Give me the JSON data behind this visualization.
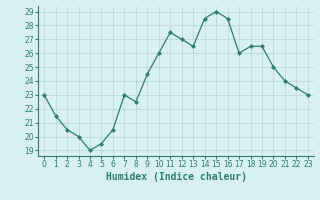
{
  "x": [
    0,
    1,
    2,
    3,
    4,
    5,
    6,
    7,
    8,
    9,
    10,
    11,
    12,
    13,
    14,
    15,
    16,
    17,
    18,
    19,
    20,
    21,
    22,
    23
  ],
  "y": [
    23.0,
    21.5,
    20.5,
    20.0,
    19.0,
    19.5,
    20.5,
    23.0,
    22.5,
    24.5,
    26.0,
    27.5,
    27.0,
    26.5,
    28.5,
    29.0,
    28.5,
    26.0,
    26.5,
    26.5,
    25.0,
    24.0,
    23.5,
    23.0
  ],
  "xlabel": "Humidex (Indice chaleur)",
  "xlim_min": -0.5,
  "xlim_max": 23.5,
  "ylim_min": 18.6,
  "ylim_max": 29.4,
  "yticks": [
    19,
    20,
    21,
    22,
    23,
    24,
    25,
    26,
    27,
    28,
    29
  ],
  "xticks": [
    0,
    1,
    2,
    3,
    4,
    5,
    6,
    7,
    8,
    9,
    10,
    11,
    12,
    13,
    14,
    15,
    16,
    17,
    18,
    19,
    20,
    21,
    22,
    23
  ],
  "line_color": "#2e7d6e",
  "marker_color": "#2e7d6e",
  "bg_color": "#d8f0f0",
  "grid_color": "#b8d4d4",
  "xlabel_color": "#2e7d6e",
  "tick_color": "#2e7d6e",
  "xlabel_fontsize": 7,
  "tick_fontsize": 5.5
}
